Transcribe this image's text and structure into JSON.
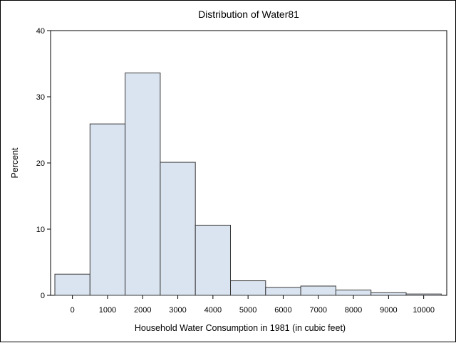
{
  "chart_data": {
    "type": "bar",
    "title": "Distribution of Water81",
    "xlabel": "Household Water Consumption in 1981 (in cubic feet)",
    "ylabel": "Percent",
    "categories": [
      "0",
      "1000",
      "2000",
      "3000",
      "4000",
      "5000",
      "6000",
      "7000",
      "8000",
      "9000",
      "10000"
    ],
    "values": [
      3.2,
      25.9,
      33.6,
      20.1,
      10.6,
      2.2,
      1.2,
      1.4,
      0.8,
      0.4,
      0.2
    ],
    "ylim": [
      0,
      40
    ],
    "yticks": [
      "0",
      "10",
      "20",
      "30",
      "40"
    ],
    "colors": {
      "bar_fill": "#dae3f0",
      "bar_stroke": "#3a3a3a"
    },
    "grid": false,
    "legend": "none"
  }
}
